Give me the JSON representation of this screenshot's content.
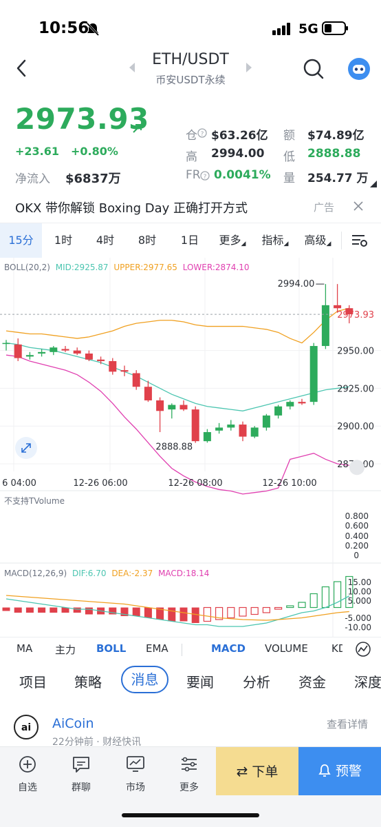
{
  "status": {
    "time": "10:56",
    "network": "5G"
  },
  "header": {
    "pair": "ETH/USDT",
    "subtitle": "币安USDT永续"
  },
  "ticker": {
    "price": "2973.93",
    "change": "+23.61",
    "change_pct": "+0.80%",
    "net_inflow_label": "净流入",
    "net_inflow": "$6837万",
    "oi_label": "仓",
    "oi": "$63.26亿",
    "amount_label": "额",
    "amount": "$74.89亿",
    "high_label": "高",
    "high": "2994.00",
    "low_label": "低",
    "low": "2888.88",
    "fr_label": "FR",
    "fr": "0.0041%",
    "volume_label": "量",
    "volume": "254.77 万"
  },
  "ad": {
    "text": "OKX 带你解锁 Boxing Day 正确打开方式",
    "tag": "广告"
  },
  "timeframes": [
    {
      "label": "15分",
      "active": true
    },
    {
      "label": "1时"
    },
    {
      "label": "4时"
    },
    {
      "label": "8时"
    },
    {
      "label": "1日"
    },
    {
      "label": "更多"
    },
    {
      "label": "指标"
    },
    {
      "label": "高级"
    }
  ],
  "boll_legend": {
    "name": "BOLL(20,2)",
    "mid": "MID:2925.87",
    "upper": "UPPER:2977.65",
    "lower": "LOWER:2874.10"
  },
  "tvolume_note": "不支持TVolume",
  "macd_legend": {
    "name": "MACD(12,26,9)",
    "dif": "DIF:6.70",
    "dea": "DEA:-2.37",
    "macd": "MACD:18.14"
  },
  "chart_data": [
    {
      "type": "candlestick",
      "x_ticks": [
        "6 04:00",
        "12-26 06:00",
        "12-26 08:00",
        "12-26 10:00"
      ],
      "y_ticks": [
        2950.0,
        2925.0,
        2900.0,
        2875.0
      ],
      "ylim": [
        2870,
        3000
      ],
      "last_price_label": "2973.93",
      "max_label": "2994.00",
      "min_label": "2888.88",
      "candles": [
        {
          "o": 2955,
          "h": 2957,
          "l": 2950,
          "c": 2955
        },
        {
          "o": 2954,
          "h": 2958,
          "l": 2943,
          "c": 2945
        },
        {
          "o": 2946,
          "h": 2949,
          "l": 2944,
          "c": 2947
        },
        {
          "o": 2948,
          "h": 2951,
          "l": 2946,
          "c": 2949
        },
        {
          "o": 2949,
          "h": 2953,
          "l": 2947,
          "c": 2952
        },
        {
          "o": 2951,
          "h": 2953,
          "l": 2949,
          "c": 2950
        },
        {
          "o": 2950,
          "h": 2952,
          "l": 2947,
          "c": 2948
        },
        {
          "o": 2948,
          "h": 2950,
          "l": 2943,
          "c": 2944
        },
        {
          "o": 2944,
          "h": 2946,
          "l": 2941,
          "c": 2943
        },
        {
          "o": 2943,
          "h": 2945,
          "l": 2934,
          "c": 2936
        },
        {
          "o": 2937,
          "h": 2940,
          "l": 2933,
          "c": 2936
        },
        {
          "o": 2935,
          "h": 2937,
          "l": 2924,
          "c": 2926
        },
        {
          "o": 2926,
          "h": 2930,
          "l": 2916,
          "c": 2917
        },
        {
          "o": 2917,
          "h": 2919,
          "l": 2896,
          "c": 2910
        },
        {
          "o": 2911,
          "h": 2915,
          "l": 2905,
          "c": 2914
        },
        {
          "o": 2914,
          "h": 2917,
          "l": 2910,
          "c": 2911
        },
        {
          "o": 2911,
          "h": 2913,
          "l": 2888.88,
          "c": 2890
        },
        {
          "o": 2890,
          "h": 2898,
          "l": 2889,
          "c": 2896
        },
        {
          "o": 2897,
          "h": 2902,
          "l": 2895,
          "c": 2899
        },
        {
          "o": 2899,
          "h": 2904,
          "l": 2897,
          "c": 2901
        },
        {
          "o": 2901,
          "h": 2903,
          "l": 2890,
          "c": 2893
        },
        {
          "o": 2893,
          "h": 2900,
          "l": 2892,
          "c": 2899
        },
        {
          "o": 2899,
          "h": 2908,
          "l": 2897,
          "c": 2907
        },
        {
          "o": 2907,
          "h": 2914,
          "l": 2905,
          "c": 2913
        },
        {
          "o": 2913,
          "h": 2917,
          "l": 2911,
          "c": 2916
        },
        {
          "o": 2916,
          "h": 2918,
          "l": 2914,
          "c": 2915
        },
        {
          "o": 2916,
          "h": 2955,
          "l": 2914,
          "c": 2953
        },
        {
          "o": 2953,
          "h": 2994,
          "l": 2951,
          "c": 2980
        },
        {
          "o": 2980,
          "h": 2994,
          "l": 2975,
          "c": 2978
        },
        {
          "o": 2978,
          "h": 2980,
          "l": 2968,
          "c": 2974
        }
      ],
      "boll_mid": [
        2955,
        2954,
        2952,
        2951,
        2950,
        2948,
        2946,
        2944,
        2942,
        2939,
        2936,
        2933,
        2929,
        2925,
        2921,
        2918,
        2915,
        2913,
        2912,
        2911,
        2910,
        2912,
        2914,
        2916,
        2918,
        2920,
        2922,
        2924,
        2925,
        2926
      ],
      "boll_upper": [
        2963,
        2962,
        2961,
        2961,
        2960,
        2959,
        2958,
        2959,
        2961,
        2963,
        2966,
        2968,
        2969,
        2970,
        2970,
        2969,
        2967,
        2966,
        2966,
        2966,
        2966,
        2965,
        2964,
        2962,
        2958,
        2955,
        2962,
        2970,
        2976,
        2978
      ],
      "boll_lower": [
        2947,
        2946,
        2943,
        2941,
        2939,
        2937,
        2934,
        2929,
        2923,
        2915,
        2906,
        2898,
        2889,
        2880,
        2872,
        2867,
        2863,
        2860,
        2858,
        2857,
        2855,
        2856,
        2857,
        2859,
        2878,
        2880,
        2882,
        2878,
        2875,
        2874
      ]
    },
    {
      "type": "bar",
      "name": "MACD",
      "y_ticks": [
        15.0,
        10.0,
        5.0,
        -5.0,
        -10.0
      ],
      "ylim": [
        -13,
        19
      ],
      "macd": [
        -2,
        -3,
        -3,
        -3,
        -3,
        -3,
        -3,
        -4,
        -4,
        -4,
        -5,
        -5,
        -6,
        -7,
        -8,
        -8,
        -9,
        -8,
        -7,
        -6,
        -5,
        -4,
        -3,
        -1,
        1,
        3,
        8,
        12,
        15,
        18
      ],
      "dif": [
        5,
        4,
        3,
        2,
        1,
        0,
        -1,
        -1,
        -2,
        -3,
        -4,
        -5,
        -6,
        -7,
        -8,
        -9,
        -10,
        -10,
        -11,
        -11,
        -11,
        -10,
        -9,
        -7,
        -5,
        -3,
        -2,
        0,
        3,
        6.7
      ],
      "dea": [
        7,
        6.5,
        6,
        5.5,
        5,
        4.5,
        4,
        3.5,
        3,
        2.5,
        2,
        1,
        0,
        -1,
        -2,
        -3,
        -4,
        -5,
        -6,
        -6.5,
        -7,
        -7.2,
        -7.4,
        -7,
        -6.5,
        -6,
        -5,
        -4,
        -3,
        -2.37
      ]
    }
  ],
  "indicator_tabs": [
    "MA",
    "主力",
    "BOLL",
    "EMA",
    "MACD",
    "VOLUME",
    "KD"
  ],
  "news_tabs": [
    "项目",
    "策略",
    "消息",
    "要闻",
    "分析",
    "资金",
    "深度"
  ],
  "news_item": {
    "source": "AiCoin",
    "meta": "22分钟前 · 财经快讯",
    "action": "查看详情"
  },
  "bottom_nav": [
    {
      "label": "自选",
      "icon": "plus-circle-icon"
    },
    {
      "label": "群聊",
      "icon": "chat-icon"
    },
    {
      "label": "市场",
      "icon": "market-chart-icon"
    },
    {
      "label": "更多",
      "icon": "more-sliders-icon"
    }
  ],
  "actions": {
    "order": "下单",
    "alert": "预警"
  },
  "colors": {
    "up": "#2dab5c",
    "down": "#e0414b",
    "mid": "#4bc5b0",
    "upper": "#f0a020",
    "lower": "#e03fb0",
    "accent": "#2a6fd6"
  }
}
